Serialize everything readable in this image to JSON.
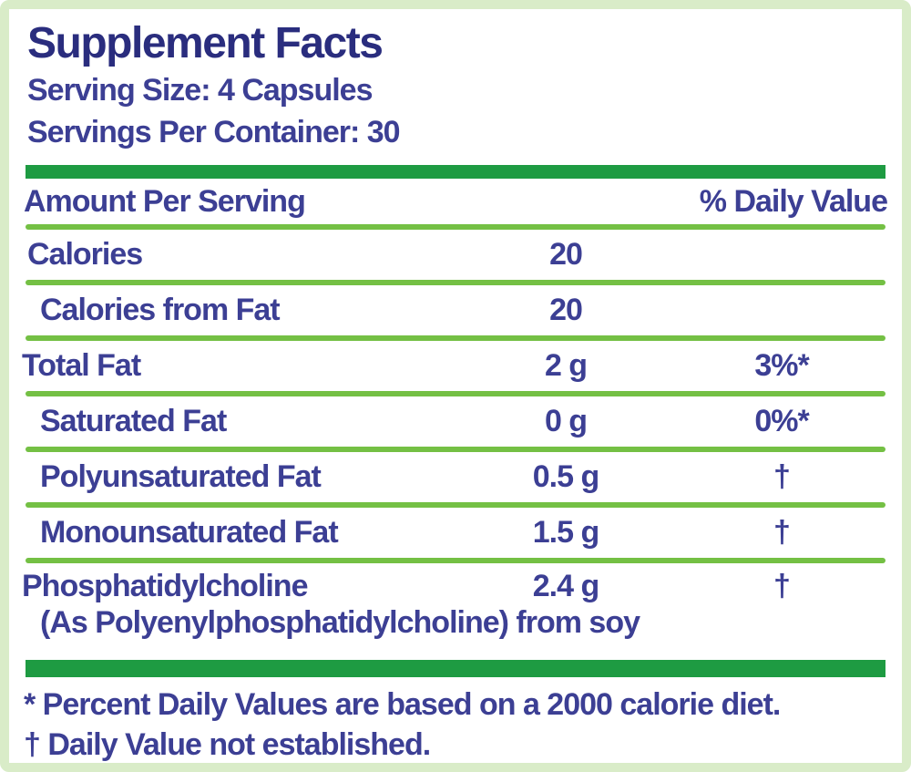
{
  "panel": {
    "title": "Supplement Facts",
    "serving_size": "Serving Size: 4 Capsules",
    "servings_per_container": "Servings Per Container: 30",
    "table": {
      "header": {
        "amount_label": "Amount Per Serving",
        "dv_label": "% Daily Value"
      },
      "rows": [
        {
          "name": "Calories",
          "amount": "20",
          "dv": "",
          "indent": 1,
          "subtext": ""
        },
        {
          "name": "Calories from Fat",
          "amount": "20",
          "dv": "",
          "indent": 2,
          "subtext": ""
        },
        {
          "name": "Total Fat",
          "amount": "2 g",
          "dv": "3%*",
          "indent": 0,
          "subtext": ""
        },
        {
          "name": "Saturated Fat",
          "amount": "0 g",
          "dv": "0%*",
          "indent": 2,
          "subtext": ""
        },
        {
          "name": "Polyunsaturated Fat",
          "amount": "0.5 g",
          "dv": "†",
          "indent": 2,
          "subtext": ""
        },
        {
          "name": "Monounsaturated Fat",
          "amount": "1.5 g",
          "dv": "†",
          "indent": 2,
          "subtext": ""
        },
        {
          "name": "Phosphatidylcholine",
          "amount": "2.4 g",
          "dv": "†",
          "indent": 0,
          "subtext": "(As Polyenylphosphatidylcholine) from soy"
        }
      ]
    },
    "footnotes": [
      "* Percent Daily Values are based on a 2000 calorie diet.",
      "† Daily Value not established."
    ],
    "colors": {
      "title_text": "#2a2d7e",
      "body_text": "#3c3f94",
      "thick_bar": "#1e9b42",
      "thin_rule": "#74c044",
      "frame": "#d9ecc8",
      "background": "#ffffff"
    }
  }
}
